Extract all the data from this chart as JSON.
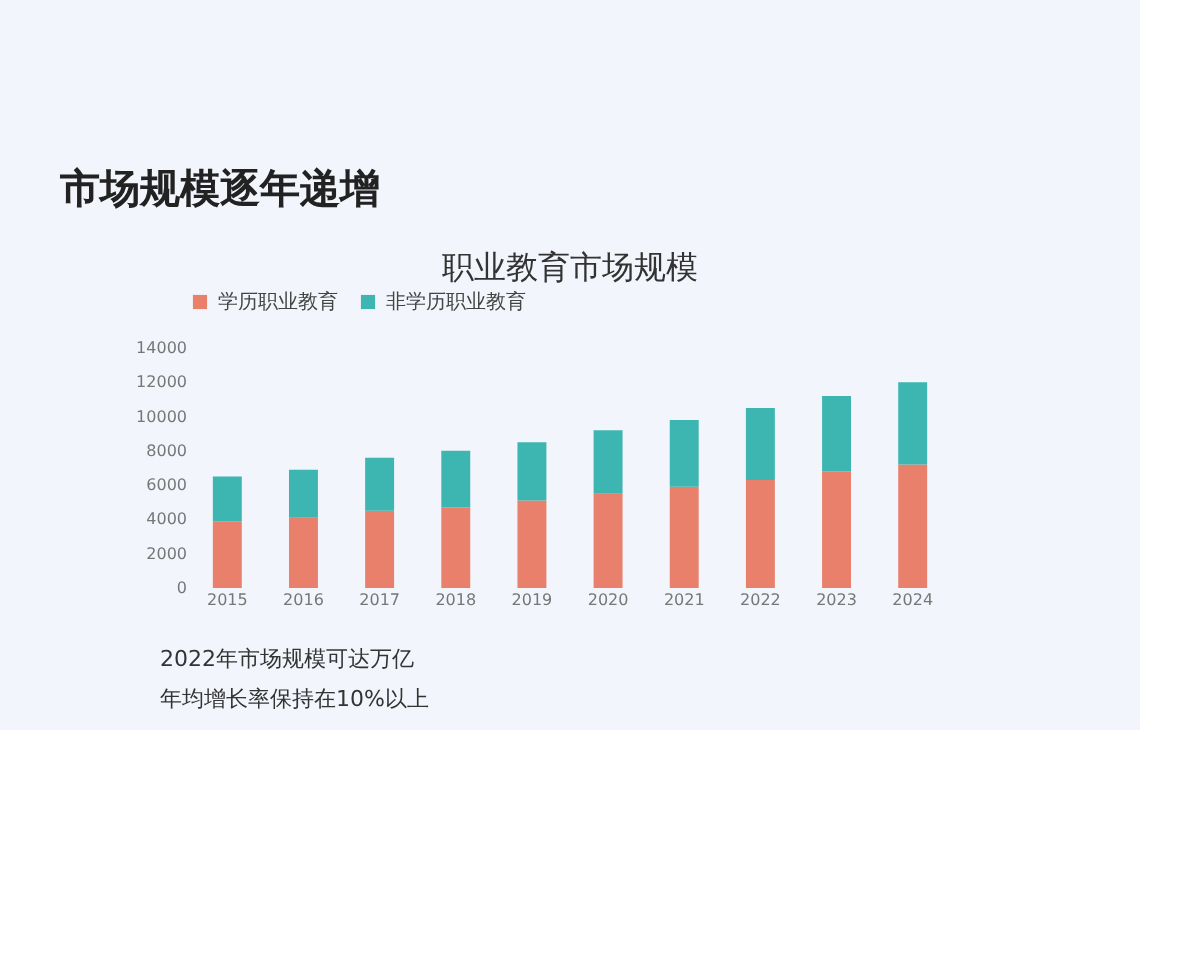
{
  "chart_data": {
    "type": "bar",
    "title": "职业教育市场规模",
    "categories": [
      "2015",
      "2016",
      "2017",
      "2018",
      "2019",
      "2020",
      "2021",
      "2022",
      "2023",
      "2024"
    ],
    "series": [
      {
        "name": "学历职业教育",
        "color": "#e9806b",
        "values": [
          3900,
          4100,
          4500,
          4700,
          5100,
          5500,
          5900,
          6300,
          6800,
          7200
        ]
      },
      {
        "name": "非学历职业教育",
        "color": "#3db6b1",
        "values": [
          2600,
          2800,
          3100,
          3300,
          3400,
          3700,
          3900,
          4200,
          4400,
          4800
        ]
      }
    ],
    "stacked": true,
    "ylim": [
      0,
      14000
    ],
    "yticks": [
      0,
      2000,
      4000,
      6000,
      8000,
      10000,
      12000,
      14000
    ],
    "grid": false,
    "legend": "top",
    "annotations": [
      "市场规模逐年递增",
      "2022年市场规模可达万亿",
      "年均增长率保持在10%以上"
    ]
  }
}
